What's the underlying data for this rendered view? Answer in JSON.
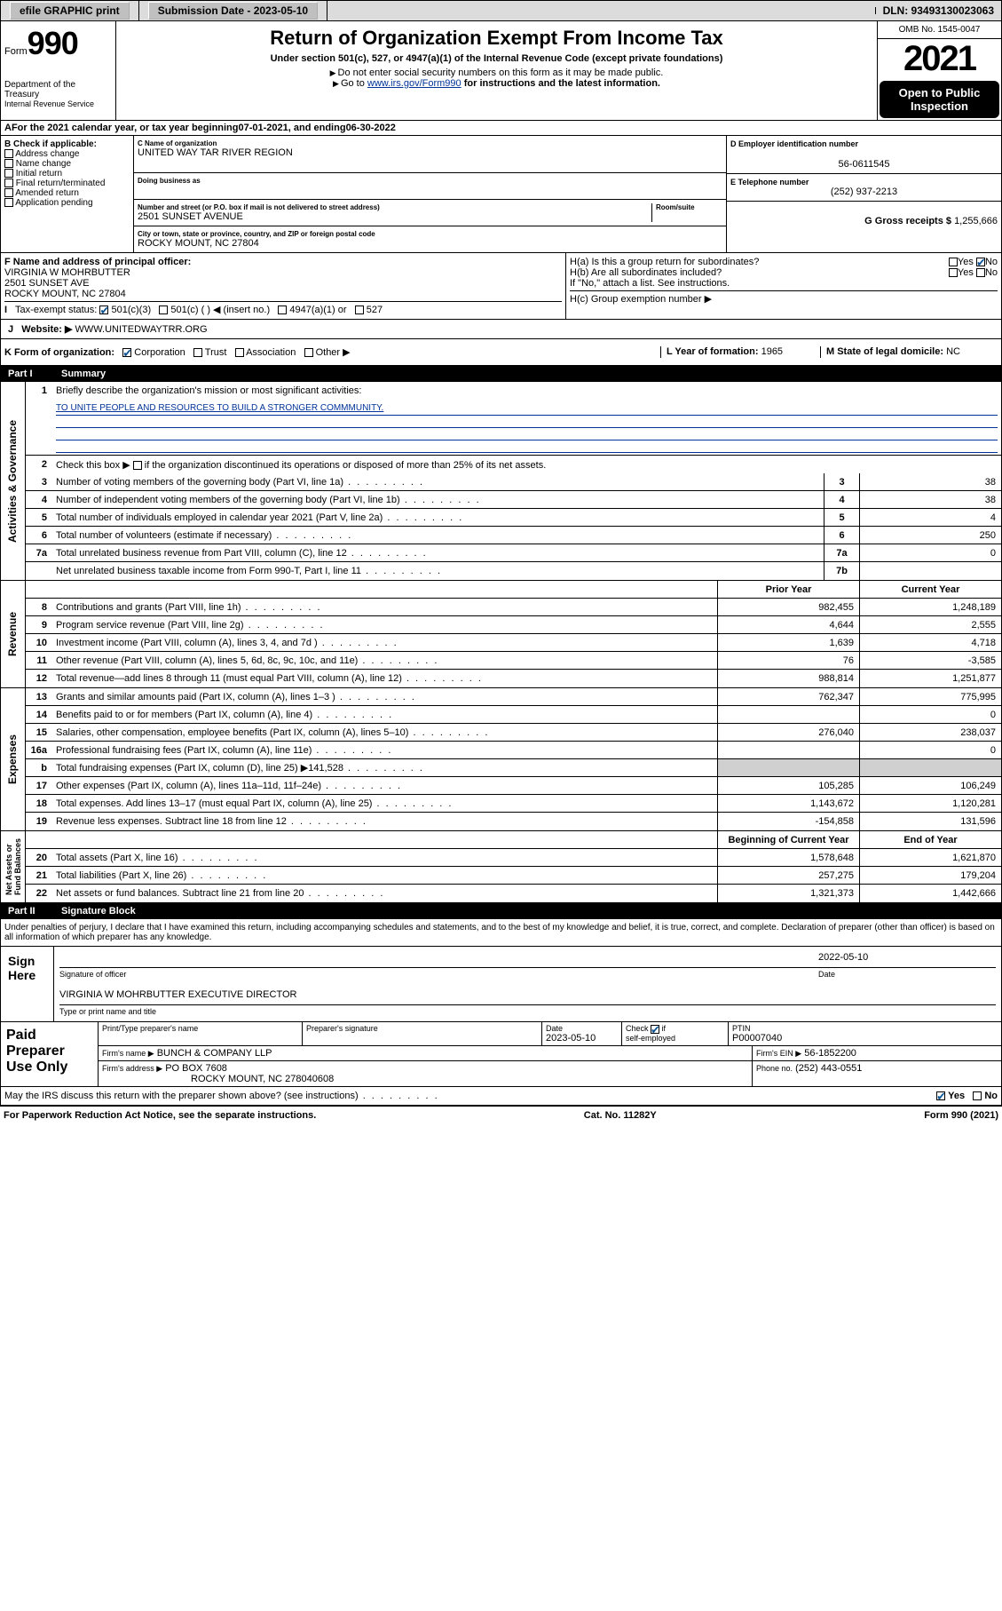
{
  "topbar": {
    "efile": "efile GRAPHIC print",
    "submission": "Submission Date - 2023-05-10",
    "dln": "DLN: 93493130023063"
  },
  "header": {
    "form_prefix": "Form",
    "form_num": "990",
    "title": "Return of Organization Exempt From Income Tax",
    "subtitle": "Under section 501(c), 527, or 4947(a)(1) of the Internal Revenue Code (except private foundations)",
    "note1": "Do not enter social security numbers on this form as it may be made public.",
    "note2_pre": "Go to ",
    "note2_link": "www.irs.gov/Form990",
    "note2_post": " for instructions and the latest information.",
    "dept": "Department of the Treasury",
    "irs": "Internal Revenue Service",
    "omb": "OMB No. 1545-0047",
    "year": "2021",
    "open1": "Open to Public",
    "open2": "Inspection"
  },
  "line_a": {
    "text_pre": "For the 2021 calendar year, or tax year beginning ",
    "begin": "07-01-2021",
    "mid": " , and ending ",
    "end": "06-30-2022"
  },
  "section_b": {
    "header": "B Check if applicable:",
    "items": [
      "Address change",
      "Name change",
      "Initial return",
      "Final return/terminated",
      "Amended return",
      "Application pending"
    ]
  },
  "section_c": {
    "name_lbl": "C Name of organization",
    "name": "UNITED WAY TAR RIVER REGION",
    "dba_lbl": "Doing business as",
    "dba": "",
    "addr_lbl": "Number and street (or P.O. box if mail is not delivered to street address)",
    "room_lbl": "Room/suite",
    "addr": "2501 SUNSET AVENUE",
    "city_lbl": "City or town, state or province, country, and ZIP or foreign postal code",
    "city": "ROCKY MOUNT, NC  27804"
  },
  "section_d": {
    "lbl": "D Employer identification number",
    "val": "56-0611545"
  },
  "section_e": {
    "lbl": "E Telephone number",
    "val": "(252) 937-2213"
  },
  "section_g": {
    "lbl": "G Gross receipts $",
    "val": "1,255,666"
  },
  "section_f": {
    "lbl": "F Name and address of principal officer:",
    "name": "VIRGINIA W MOHRBUTTER",
    "addr1": "2501 SUNSET AVE",
    "addr2": "ROCKY MOUNT, NC  27804"
  },
  "section_h": {
    "ha": "H(a)  Is this a group return for subordinates?",
    "ha_no": "No",
    "hb": "H(b)  Are all subordinates included?",
    "hb_note": "If \"No,\" attach a list. See instructions.",
    "hc": "H(c)  Group exemption number ▶"
  },
  "line_i": {
    "lbl": "Tax-exempt status:",
    "o1": "501(c)(3)",
    "o2": "501(c) (  ) ◀ (insert no.)",
    "o3": "4947(a)(1) or",
    "o4": "527"
  },
  "line_j": {
    "lbl": "Website: ▶",
    "val": "WWW.UNITEDWAYTRR.ORG"
  },
  "line_k": {
    "lbl": "K Form of organization:",
    "o1": "Corporation",
    "o2": "Trust",
    "o3": "Association",
    "o4": "Other ▶"
  },
  "line_l": {
    "lbl": "L Year of formation:",
    "val": "1965"
  },
  "line_m": {
    "lbl": "M State of legal domicile:",
    "val": "NC"
  },
  "part1": {
    "num": "Part I",
    "title": "Summary"
  },
  "summary": {
    "q1": "Briefly describe the organization's mission or most significant activities:",
    "mission": "TO UNITE PEOPLE AND RESOURCES TO BUILD A STRONGER COMMMUNITY.",
    "q2": "Check this box ▶      if the organization discontinued its operations or disposed of more than 25% of its net assets.",
    "rows_gov": [
      {
        "n": "3",
        "d": "Number of voting members of the governing body (Part VI, line 1a)",
        "b": "3",
        "v": "38"
      },
      {
        "n": "4",
        "d": "Number of independent voting members of the governing body (Part VI, line 1b)",
        "b": "4",
        "v": "38"
      },
      {
        "n": "5",
        "d": "Total number of individuals employed in calendar year 2021 (Part V, line 2a)",
        "b": "5",
        "v": "4"
      },
      {
        "n": "6",
        "d": "Total number of volunteers (estimate if necessary)",
        "b": "6",
        "v": "250"
      },
      {
        "n": "7a",
        "d": "Total unrelated business revenue from Part VIII, column (C), line 12",
        "b": "7a",
        "v": "0"
      },
      {
        "n": "",
        "d": "Net unrelated business taxable income from Form 990-T, Part I, line 11",
        "b": "7b",
        "v": ""
      }
    ],
    "col_prior": "Prior Year",
    "col_current": "Current Year",
    "rows_rev": [
      {
        "n": "8",
        "d": "Contributions and grants (Part VIII, line 1h)",
        "p": "982,455",
        "c": "1,248,189"
      },
      {
        "n": "9",
        "d": "Program service revenue (Part VIII, line 2g)",
        "p": "4,644",
        "c": "2,555"
      },
      {
        "n": "10",
        "d": "Investment income (Part VIII, column (A), lines 3, 4, and 7d )",
        "p": "1,639",
        "c": "4,718"
      },
      {
        "n": "11",
        "d": "Other revenue (Part VIII, column (A), lines 5, 6d, 8c, 9c, 10c, and 11e)",
        "p": "76",
        "c": "-3,585"
      },
      {
        "n": "12",
        "d": "Total revenue—add lines 8 through 11 (must equal Part VIII, column (A), line 12)",
        "p": "988,814",
        "c": "1,251,877"
      }
    ],
    "rows_exp": [
      {
        "n": "13",
        "d": "Grants and similar amounts paid (Part IX, column (A), lines 1–3 )",
        "p": "762,347",
        "c": "775,995"
      },
      {
        "n": "14",
        "d": "Benefits paid to or for members (Part IX, column (A), line 4)",
        "p": "",
        "c": "0"
      },
      {
        "n": "15",
        "d": "Salaries, other compensation, employee benefits (Part IX, column (A), lines 5–10)",
        "p": "276,040",
        "c": "238,037"
      },
      {
        "n": "16a",
        "d": "Professional fundraising fees (Part IX, column (A), line 11e)",
        "p": "",
        "c": "0"
      },
      {
        "n": "b",
        "d": "Total fundraising expenses (Part IX, column (D), line 25) ▶141,528",
        "p": "",
        "c": "",
        "shade": true
      },
      {
        "n": "17",
        "d": "Other expenses (Part IX, column (A), lines 11a–11d, 11f–24e)",
        "p": "105,285",
        "c": "106,249"
      },
      {
        "n": "18",
        "d": "Total expenses. Add lines 13–17 (must equal Part IX, column (A), line 25)",
        "p": "1,143,672",
        "c": "1,120,281"
      },
      {
        "n": "19",
        "d": "Revenue less expenses. Subtract line 18 from line 12",
        "p": "-154,858",
        "c": "131,596"
      }
    ],
    "col_begin": "Beginning of Current Year",
    "col_end": "End of Year",
    "rows_net": [
      {
        "n": "20",
        "d": "Total assets (Part X, line 16)",
        "p": "1,578,648",
        "c": "1,621,870"
      },
      {
        "n": "21",
        "d": "Total liabilities (Part X, line 26)",
        "p": "257,275",
        "c": "179,204"
      },
      {
        "n": "22",
        "d": "Net assets or fund balances. Subtract line 21 from line 20",
        "p": "1,321,373",
        "c": "1,442,666"
      }
    ]
  },
  "part2": {
    "num": "Part II",
    "title": "Signature Block"
  },
  "penalty": "Under penalties of perjury, I declare that I have examined this return, including accompanying schedules and statements, and to the best of my knowledge and belief, it is true, correct, and complete. Declaration of preparer (other than officer) is based on all information of which preparer has any knowledge.",
  "sign": {
    "here": "Sign Here",
    "sig_lbl": "Signature of officer",
    "date": "2022-05-10",
    "date_lbl": "Date",
    "name": "VIRGINIA W MOHRBUTTER  EXECUTIVE DIRECTOR",
    "name_lbl": "Type or print name and title"
  },
  "prep": {
    "title": "Paid Preparer Use Only",
    "h1": "Print/Type preparer's name",
    "h2": "Preparer's signature",
    "h3": "Date",
    "date": "2023-05-10",
    "h4": "Check        if self-employed",
    "h5": "PTIN",
    "ptin": "P00007040",
    "firm_lbl": "Firm's name    ▶",
    "firm": "BUNCH & COMPANY LLP",
    "ein_lbl": "Firm's EIN ▶",
    "ein": "56-1852200",
    "addr_lbl": "Firm's address ▶",
    "addr1": "PO BOX 7608",
    "addr2": "ROCKY MOUNT, NC  278040608",
    "phone_lbl": "Phone no.",
    "phone": "(252) 443-0551"
  },
  "discuss": "May the IRS discuss this return with the preparer shown above? (see instructions)",
  "footer": {
    "left": "For Paperwork Reduction Act Notice, see the separate instructions.",
    "mid": "Cat. No. 11282Y",
    "right": "Form 990 (2021)"
  },
  "yes": "Yes",
  "no": "No"
}
